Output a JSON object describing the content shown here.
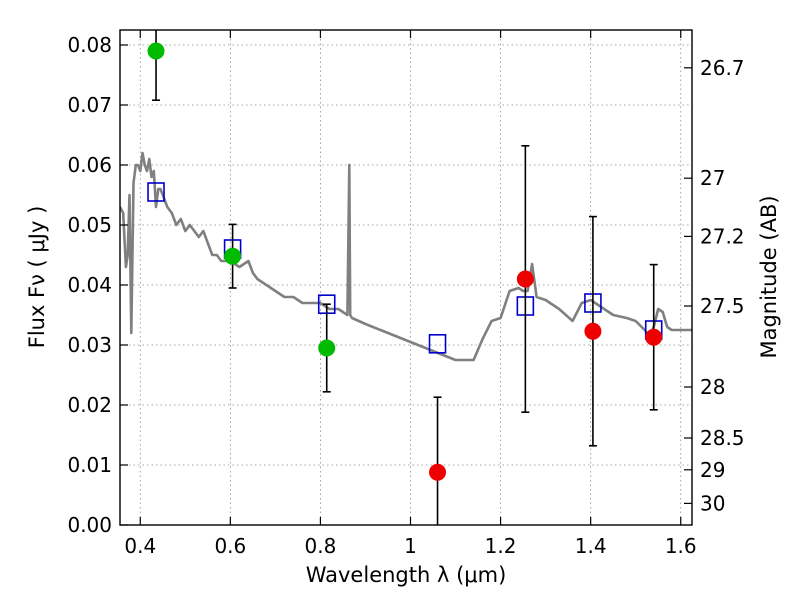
{
  "chart_data": {
    "type": "scatter",
    "title": "",
    "xlabel": "Wavelength  λ (μm)",
    "ylabel": "Flux  Fν  ( μJy )",
    "y2label": "Magnitude (AB)",
    "xlim": [
      0.355,
      1.625
    ],
    "ylim": [
      0.0,
      0.0825
    ],
    "grid": true,
    "legend": "none",
    "x_ticks": [
      0.4,
      0.6,
      0.8,
      1.0,
      1.2,
      1.4,
      1.6
    ],
    "x_tick_labels": [
      "0.4",
      "0.6",
      "0.8",
      "1",
      "1.2",
      "1.4",
      "1.6"
    ],
    "y_ticks": [
      0.0,
      0.01,
      0.02,
      0.03,
      0.04,
      0.05,
      0.06,
      0.07,
      0.08
    ],
    "y_tick_labels": [
      "0.00",
      "0.01",
      "0.02",
      "0.03",
      "0.04",
      "0.05",
      "0.06",
      "0.07",
      "0.08"
    ],
    "right_axis_ticks": [
      {
        "label": "26.7",
        "flux": 0.0762
      },
      {
        "label": "27",
        "flux": 0.0578
      },
      {
        "label": "27.2",
        "flux": 0.0481
      },
      {
        "label": "27.5",
        "flux": 0.0365
      },
      {
        "label": "28",
        "flux": 0.023
      },
      {
        "label": "28.5",
        "flux": 0.0145
      },
      {
        "label": "29",
        "flux": 0.0092
      },
      {
        "label": "30",
        "flux": 0.0036
      }
    ],
    "series": [
      {
        "kind": "model_spectrum",
        "color": "#808080",
        "x": [
          0.355,
          0.362,
          0.368,
          0.372,
          0.376,
          0.38,
          0.385,
          0.39,
          0.395,
          0.4,
          0.405,
          0.41,
          0.415,
          0.42,
          0.425,
          0.43,
          0.435,
          0.44,
          0.445,
          0.45,
          0.46,
          0.47,
          0.48,
          0.49,
          0.5,
          0.51,
          0.52,
          0.53,
          0.54,
          0.55,
          0.56,
          0.57,
          0.58,
          0.59,
          0.6,
          0.62,
          0.64,
          0.65,
          0.66,
          0.68,
          0.7,
          0.72,
          0.74,
          0.76,
          0.78,
          0.8,
          0.82,
          0.84,
          0.86,
          0.864,
          0.866,
          0.87,
          0.9,
          0.95,
          1.0,
          1.05,
          1.1,
          1.14,
          1.16,
          1.18,
          1.2,
          1.22,
          1.24,
          1.25,
          1.26,
          1.27,
          1.28,
          1.3,
          1.33,
          1.36,
          1.38,
          1.4,
          1.42,
          1.45,
          1.48,
          1.5,
          1.52,
          1.53,
          1.54,
          1.55,
          1.56,
          1.57,
          1.58,
          1.6,
          1.625
        ],
        "y": [
          0.053,
          0.052,
          0.043,
          0.045,
          0.055,
          0.032,
          0.057,
          0.06,
          0.06,
          0.059,
          0.062,
          0.06,
          0.059,
          0.061,
          0.058,
          0.059,
          0.053,
          0.056,
          0.056,
          0.055,
          0.053,
          0.052,
          0.05,
          0.051,
          0.049,
          0.05,
          0.049,
          0.048,
          0.049,
          0.047,
          0.045,
          0.045,
          0.044,
          0.044,
          0.044,
          0.043,
          0.044,
          0.042,
          0.041,
          0.04,
          0.039,
          0.038,
          0.038,
          0.037,
          0.037,
          0.037,
          0.036,
          0.036,
          0.035,
          0.06,
          0.035,
          0.0345,
          0.0335,
          0.032,
          0.0305,
          0.029,
          0.0275,
          0.0275,
          0.031,
          0.034,
          0.0345,
          0.039,
          0.0395,
          0.039,
          0.039,
          0.0435,
          0.038,
          0.0375,
          0.036,
          0.034,
          0.037,
          0.0375,
          0.0365,
          0.035,
          0.0345,
          0.034,
          0.0325,
          0.0315,
          0.033,
          0.036,
          0.0355,
          0.033,
          0.0325,
          0.0325,
          0.0325
        ]
      },
      {
        "kind": "model_photometry",
        "marker": "open-square",
        "color": "#0000cc",
        "x": [
          0.435,
          0.605,
          0.814,
          1.06,
          1.255,
          1.405,
          1.54
        ],
        "y": [
          0.0555,
          0.046,
          0.0368,
          0.0302,
          0.0365,
          0.037,
          0.0325
        ]
      },
      {
        "kind": "observed_green",
        "marker": "filled-circle",
        "color": "#00bb00",
        "x": [
          0.435,
          0.605,
          0.814
        ],
        "y": [
          0.079,
          0.0448,
          0.0295
        ],
        "err_lo": [
          0.0082,
          0.0053,
          0.0073
        ],
        "err_hi": [
          0.0082,
          0.0053,
          0.0073
        ]
      },
      {
        "kind": "observed_red",
        "marker": "filled-circle",
        "color": "#ee0000",
        "x": [
          1.06,
          1.255,
          1.405,
          1.54
        ],
        "y": [
          0.0088,
          0.041,
          0.0323,
          0.0313
        ],
        "err_lo": [
          0.0125,
          0.0222,
          0.0191,
          0.0121
        ],
        "err_hi": [
          0.0125,
          0.0222,
          0.0191,
          0.0121
        ]
      }
    ]
  }
}
